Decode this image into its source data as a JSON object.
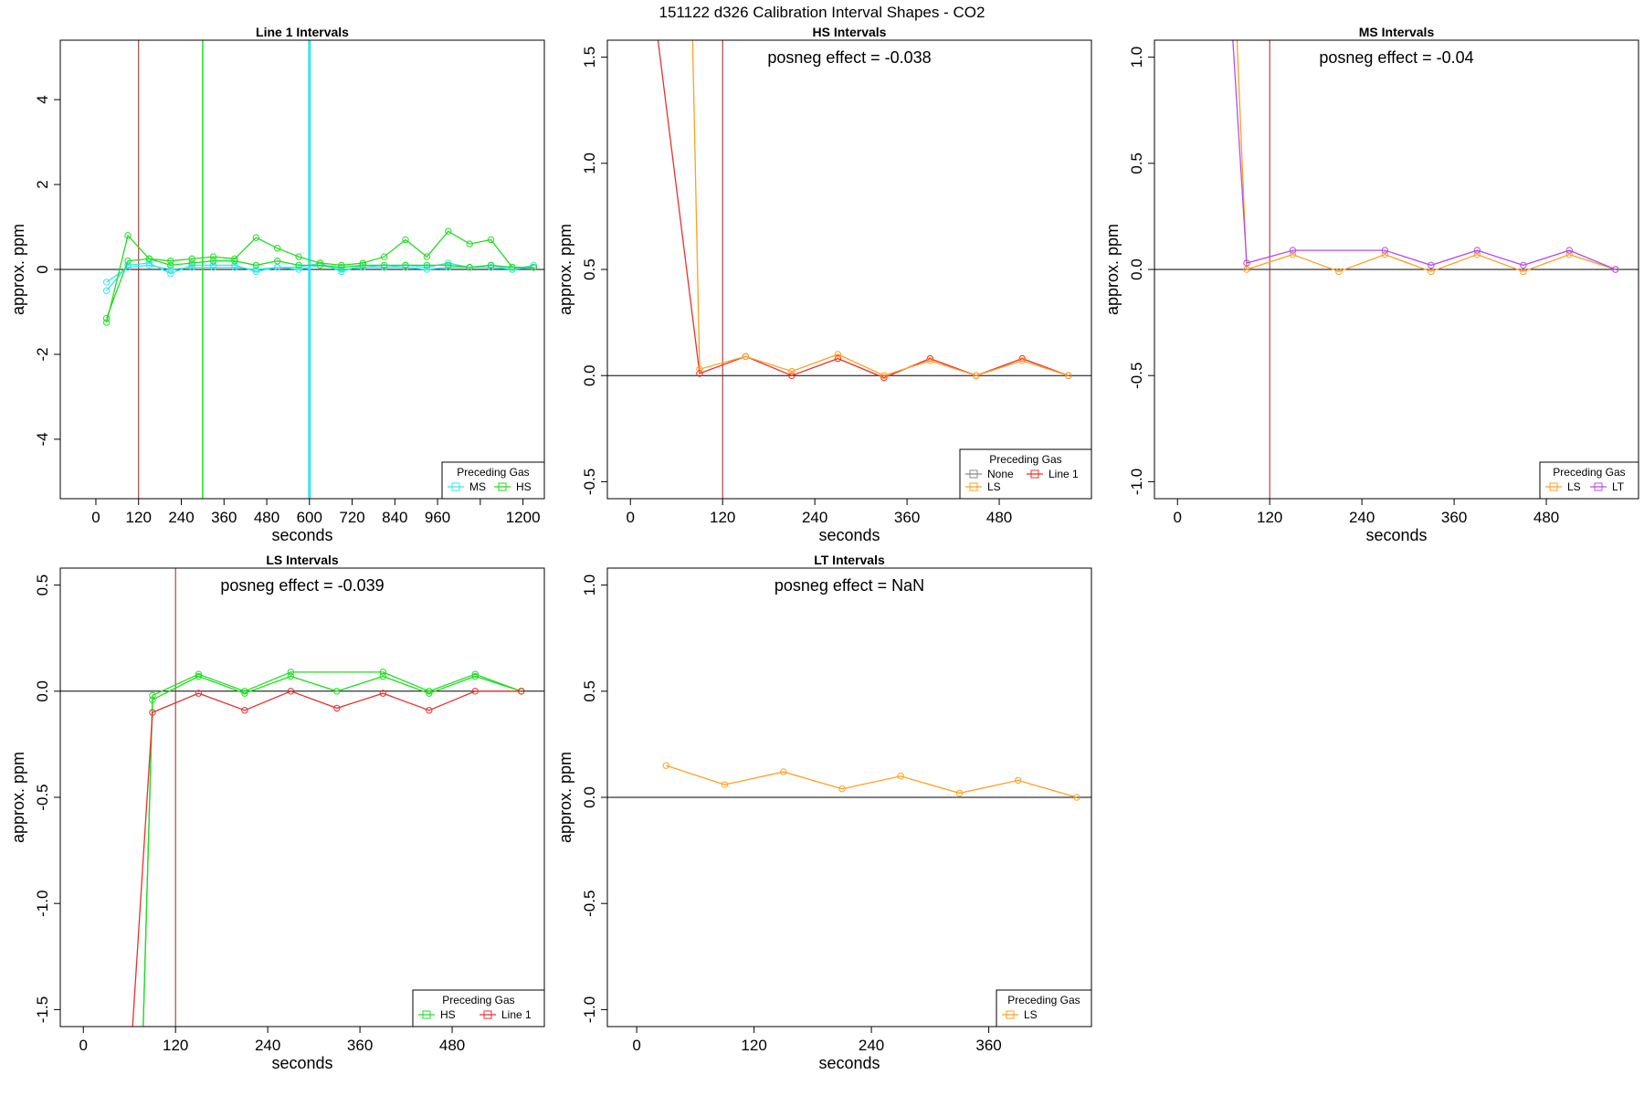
{
  "figure_title": "151122  d326   Calibration Interval Shapes - CO2",
  "colors": {
    "MS": "#33e6f2",
    "HS": "#22dd22",
    "None": "#888888",
    "LS": "#ffa020",
    "Line 1": "#e83030",
    "LT": "#b44ee8",
    "vline": "#a02020"
  },
  "chart_data": [
    {
      "type": "line",
      "title": "Line 1 Intervals",
      "xlabel": "seconds",
      "ylabel": "approx. ppm",
      "xlim": [
        -100,
        1260
      ],
      "ylim": [
        -5.4,
        5.4
      ],
      "xticks": [
        0,
        120,
        240,
        360,
        480,
        600,
        720,
        840,
        960,
        1080,
        1200
      ],
      "xtick_labels": [
        "0",
        "120",
        "240",
        "360",
        "480",
        "600",
        "720",
        "840",
        "960",
        "",
        "1200"
      ],
      "yticks": [
        -4,
        -2,
        0,
        2,
        4
      ],
      "ytick_labels": [
        "-4",
        "-2",
        "0",
        "2",
        "4"
      ],
      "vlines": [
        {
          "x": 120,
          "color": "vline",
          "width": 1
        },
        {
          "x": 300,
          "color": "HS",
          "width": 1.5
        },
        {
          "x": 600,
          "color": "MS",
          "width": 3
        }
      ],
      "annotation": "",
      "legend": {
        "title": "Preceding Gas",
        "position": "bottom-right",
        "entries": [
          "MS",
          "HS"
        ],
        "columns": 2
      },
      "series": [
        {
          "name": "MS",
          "x": [
            30,
            90,
            150,
            210,
            270,
            330,
            390,
            450,
            510,
            570,
            630,
            690,
            750,
            810,
            870,
            930,
            990,
            1050,
            1110,
            1170,
            1230
          ],
          "y": [
            -0.3,
            0.05,
            0.1,
            0.0,
            0.05,
            0.05,
            0.05,
            0.0,
            0.05,
            0.0,
            0.1,
            0.0,
            0.05,
            0.05,
            0.05,
            0.0,
            0.05,
            0.05,
            0.05,
            0.0,
            0.05
          ]
        },
        {
          "name": "MS",
          "x": [
            30,
            90,
            150,
            210,
            270,
            330,
            390,
            450,
            510,
            570,
            630,
            690,
            750,
            810,
            870,
            930,
            990,
            1050,
            1110,
            1170,
            1230
          ],
          "y": [
            -0.5,
            0.1,
            0.15,
            -0.1,
            0.1,
            0.1,
            0.1,
            -0.05,
            0.05,
            0.05,
            0.15,
            -0.05,
            0.1,
            0.05,
            0.1,
            0.05,
            0.15,
            0.05,
            0.1,
            0.0,
            0.1
          ]
        },
        {
          "name": "HS",
          "x": [
            30,
            90,
            150,
            210,
            270,
            330,
            390,
            450,
            510,
            570,
            630,
            690,
            750,
            810,
            870,
            930,
            990,
            1050,
            1110,
            1170,
            1230
          ],
          "y": [
            -1.25,
            0.8,
            0.25,
            0.2,
            0.25,
            0.3,
            0.25,
            0.75,
            0.5,
            0.3,
            0.15,
            0.1,
            0.15,
            0.3,
            0.7,
            0.3,
            0.9,
            0.6,
            0.7,
            0.05,
            0.05
          ]
        },
        {
          "name": "HS",
          "x": [
            30,
            90,
            150,
            210,
            270,
            330,
            390,
            450,
            510,
            570,
            630,
            690,
            750,
            810,
            870,
            930,
            990,
            1050,
            1110,
            1170,
            1230
          ],
          "y": [
            -1.15,
            0.2,
            0.25,
            0.1,
            0.15,
            0.2,
            0.2,
            0.1,
            0.2,
            0.1,
            0.1,
            0.05,
            0.1,
            0.1,
            0.1,
            0.1,
            0.1,
            0.05,
            0.1,
            0.05,
            0.05
          ]
        }
      ]
    },
    {
      "type": "line",
      "title": "HS Intervals",
      "xlabel": "seconds",
      "ylabel": "approx. ppm",
      "xlim": [
        -30,
        600
      ],
      "ylim": [
        -0.58,
        1.58
      ],
      "xticks": [
        0,
        120,
        240,
        360,
        480
      ],
      "xtick_labels": [
        "0",
        "120",
        "240",
        "360",
        "480"
      ],
      "yticks": [
        -0.5,
        0.0,
        0.5,
        1.0,
        1.5
      ],
      "ytick_labels": [
        "-0.5",
        "0.0",
        "0.5",
        "1.0",
        "1.5"
      ],
      "vlines": [
        {
          "x": 120,
          "color": "vline",
          "width": 1
        }
      ],
      "annotation": "posneg effect = -0.038",
      "legend": {
        "title": "Preceding Gas",
        "position": "bottom-right",
        "entries": [
          "None",
          "Line 1",
          "LS"
        ],
        "columns": 2
      },
      "series": [
        {
          "name": "Line 1",
          "x": [
            30,
            90,
            150,
            210,
            270,
            330,
            390,
            450,
            510,
            570
          ],
          "y": [
            1.75,
            0.01,
            0.09,
            0.0,
            0.08,
            -0.01,
            0.08,
            0.0,
            0.08,
            0.0
          ]
        },
        {
          "name": "LS",
          "x": [
            80,
            90,
            150,
            210,
            270,
            330,
            390,
            450,
            510,
            570
          ],
          "y": [
            1.75,
            0.03,
            0.09,
            0.02,
            0.1,
            0.0,
            0.07,
            0.0,
            0.07,
            0.0
          ]
        }
      ]
    },
    {
      "type": "line",
      "title": "MS Intervals",
      "xlabel": "seconds",
      "ylabel": "approx. ppm",
      "xlim": [
        -30,
        600
      ],
      "ylim": [
        -1.08,
        1.08
      ],
      "xticks": [
        0,
        120,
        240,
        360,
        480
      ],
      "xtick_labels": [
        "0",
        "120",
        "240",
        "360",
        "480"
      ],
      "yticks": [
        -1.0,
        -0.5,
        0.0,
        0.5,
        1.0
      ],
      "ytick_labels": [
        "-1.0",
        "-0.5",
        "0.0",
        "0.5",
        "1.0"
      ],
      "vlines": [
        {
          "x": 120,
          "color": "vline",
          "width": 1
        }
      ],
      "annotation": "posneg effect = -0.04",
      "legend": {
        "title": "Preceding Gas",
        "position": "bottom-right",
        "entries": [
          "LS",
          "LT"
        ],
        "columns": 2
      },
      "series": [
        {
          "name": "LS",
          "x": [
            76,
            90,
            150,
            210,
            270,
            330,
            390,
            450,
            510,
            570
          ],
          "y": [
            1.2,
            0.0,
            0.07,
            -0.01,
            0.07,
            -0.01,
            0.07,
            -0.01,
            0.07,
            0.0
          ]
        },
        {
          "name": "LT",
          "x": [
            70,
            90,
            150,
            270,
            330,
            390,
            450,
            510,
            570
          ],
          "y": [
            1.2,
            0.03,
            0.09,
            0.09,
            0.02,
            0.09,
            0.02,
            0.09,
            0.0
          ]
        }
      ]
    },
    {
      "type": "line",
      "title": "LS Intervals",
      "xlabel": "seconds",
      "ylabel": "approx. ppm",
      "xlim": [
        -30,
        600
      ],
      "ylim": [
        -1.58,
        0.58
      ],
      "xticks": [
        0,
        120,
        240,
        360,
        480
      ],
      "xtick_labels": [
        "0",
        "120",
        "240",
        "360",
        "480"
      ],
      "yticks": [
        -1.5,
        -1.0,
        -0.5,
        0.0,
        0.5
      ],
      "ytick_labels": [
        "-1.5",
        "-1.0",
        "-0.5",
        "0.0",
        "0.5"
      ],
      "vlines": [
        {
          "x": 120,
          "color": "vline",
          "width": 1
        }
      ],
      "annotation": "posneg effect = -0.039",
      "legend": {
        "title": "Preceding Gas",
        "position": "bottom-right",
        "entries": [
          "HS",
          "Line 1"
        ],
        "columns": 2
      },
      "series": [
        {
          "name": "HS",
          "x": [
            77,
            90,
            150,
            210,
            270,
            390,
            450,
            510,
            570
          ],
          "y": [
            -1.7,
            -0.02,
            0.08,
            0.0,
            0.09,
            0.09,
            0.0,
            0.08,
            0.0
          ]
        },
        {
          "name": "HS",
          "x": [
            77,
            90,
            150,
            210,
            270,
            330,
            390,
            450,
            510,
            570
          ],
          "y": [
            -1.7,
            -0.04,
            0.07,
            -0.01,
            0.07,
            0.0,
            0.07,
            -0.01,
            0.07,
            0.0
          ]
        },
        {
          "name": "Line 1",
          "x": [
            62,
            90,
            150,
            210,
            270,
            330,
            390,
            450,
            510,
            570
          ],
          "y": [
            -1.7,
            -0.1,
            -0.01,
            -0.09,
            0.0,
            -0.08,
            -0.01,
            -0.09,
            0.0,
            0.0
          ]
        }
      ]
    },
    {
      "type": "line",
      "title": "LT Intervals",
      "xlabel": "seconds",
      "ylabel": "approx. ppm",
      "xlim": [
        -30,
        465
      ],
      "ylim": [
        -1.08,
        1.08
      ],
      "xticks": [
        0,
        120,
        240,
        360
      ],
      "xtick_labels": [
        "0",
        "120",
        "240",
        "360"
      ],
      "yticks": [
        -1.0,
        -0.5,
        0.0,
        0.5,
        1.0
      ],
      "ytick_labels": [
        "-1.0",
        "-0.5",
        "0.0",
        "0.5",
        "1.0"
      ],
      "vlines": [],
      "annotation": "posneg effect = NaN",
      "legend": {
        "title": "Preceding Gas",
        "position": "bottom-right",
        "entries": [
          "LS"
        ],
        "columns": 1
      },
      "series": [
        {
          "name": "LS",
          "x": [
            30,
            90,
            150,
            210,
            270,
            330,
            390,
            450
          ],
          "y": [
            0.15,
            0.06,
            0.12,
            0.04,
            0.1,
            0.02,
            0.08,
            0.0
          ]
        }
      ]
    }
  ]
}
